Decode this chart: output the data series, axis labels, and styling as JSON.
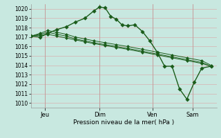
{
  "title": "",
  "xlabel": "Pression niveau de la mer( hPa )",
  "background_color": "#c8e8e0",
  "grid_color": "#d8b0b0",
  "line_color": "#1a5c1a",
  "ylim": [
    1009.5,
    1020.5
  ],
  "yticks": [
    1010,
    1011,
    1012,
    1013,
    1014,
    1015,
    1016,
    1017,
    1018,
    1019,
    1020
  ],
  "xtick_labels": [
    "Jeu",
    "Dim",
    "Ven",
    "Sam"
  ],
  "xtick_positions": [
    0.075,
    0.37,
    0.655,
    0.87
  ],
  "lines": [
    {
      "x": [
        0.0,
        0.05,
        0.09,
        0.14,
        0.19,
        0.24,
        0.29,
        0.34,
        0.37,
        0.4,
        0.43,
        0.46,
        0.49,
        0.52,
        0.56,
        0.6,
        0.64,
        0.68,
        0.72,
        0.76,
        0.8,
        0.84,
        0.88,
        0.92,
        0.97
      ],
      "y": [
        1017.1,
        1017.0,
        1017.4,
        1017.8,
        1018.1,
        1018.6,
        1019.0,
        1019.8,
        1020.2,
        1020.1,
        1019.2,
        1018.9,
        1018.3,
        1018.2,
        1018.3,
        1017.6,
        1016.6,
        1015.4,
        1013.9,
        1013.9,
        1011.5,
        1010.4,
        1012.2,
        1013.7,
        1013.9
      ]
    },
    {
      "x": [
        0.0,
        0.05,
        0.09,
        0.14,
        0.19,
        0.24,
        0.29,
        0.34,
        0.4,
        0.46,
        0.52,
        0.6,
        0.68,
        0.76,
        0.84,
        0.92,
        0.97
      ],
      "y": [
        1017.1,
        1017.4,
        1017.7,
        1017.5,
        1017.3,
        1017.0,
        1016.8,
        1016.6,
        1016.4,
        1016.2,
        1016.0,
        1015.7,
        1015.4,
        1015.1,
        1014.8,
        1014.5,
        1014.0
      ]
    },
    {
      "x": [
        0.0,
        0.05,
        0.09,
        0.14,
        0.19,
        0.24,
        0.29,
        0.34,
        0.4,
        0.46,
        0.52,
        0.6,
        0.68,
        0.76,
        0.84,
        0.92,
        0.97
      ],
      "y": [
        1017.1,
        1017.3,
        1017.5,
        1017.3,
        1017.1,
        1016.8,
        1016.6,
        1016.4,
        1016.2,
        1016.0,
        1015.8,
        1015.5,
        1015.2,
        1014.9,
        1014.6,
        1014.3,
        1013.9
      ]
    },
    {
      "x": [
        0.0,
        0.05,
        0.09,
        0.14,
        0.19,
        0.24,
        0.29,
        0.34,
        0.4,
        0.46,
        0.52,
        0.6,
        0.68,
        0.76,
        0.84,
        0.92,
        0.97
      ],
      "y": [
        1017.1,
        1017.2,
        1017.3,
        1017.1,
        1016.9,
        1016.7,
        1016.5,
        1016.3,
        1016.1,
        1015.9,
        1015.7,
        1015.4,
        1015.1,
        1014.8,
        1014.5,
        1014.2,
        1013.9
      ]
    }
  ]
}
